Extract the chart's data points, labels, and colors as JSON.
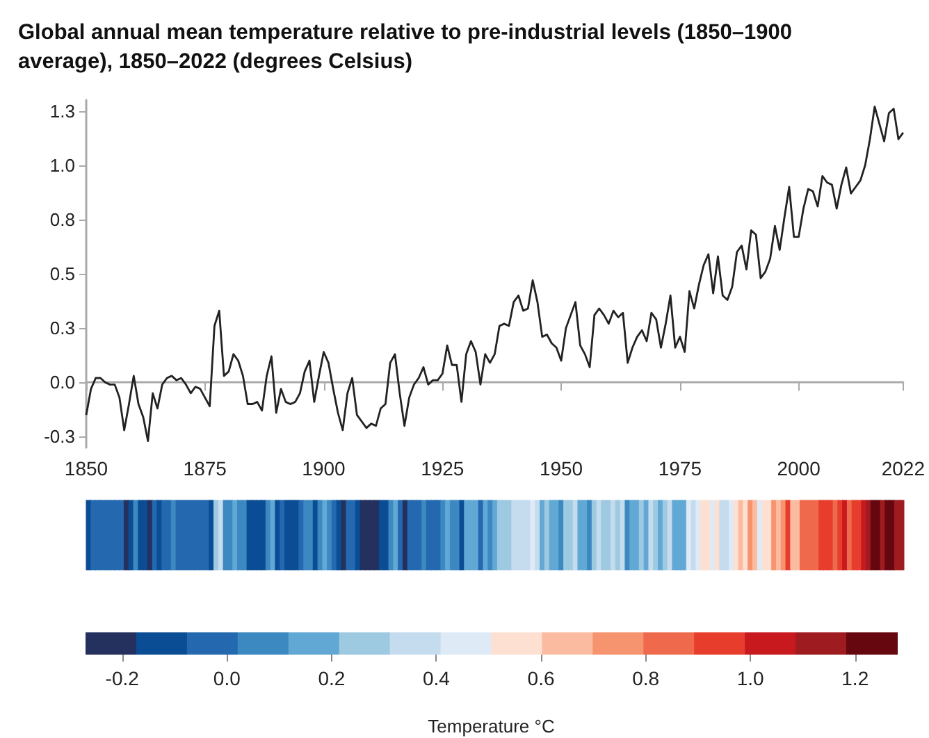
{
  "chart_data": [
    {
      "type": "line",
      "title": "Global annual mean temperature relative to pre-industrial levels (1850–1900 average), 1850–2022 (degrees Celsius)",
      "x": [
        1850,
        1851,
        1852,
        1853,
        1854,
        1855,
        1856,
        1857,
        1858,
        1859,
        1860,
        1861,
        1862,
        1863,
        1864,
        1865,
        1866,
        1867,
        1868,
        1869,
        1870,
        1871,
        1872,
        1873,
        1874,
        1875,
        1876,
        1877,
        1878,
        1879,
        1880,
        1881,
        1882,
        1883,
        1884,
        1885,
        1886,
        1887,
        1888,
        1889,
        1890,
        1891,
        1892,
        1893,
        1894,
        1895,
        1896,
        1897,
        1898,
        1899,
        1900,
        1901,
        1902,
        1903,
        1904,
        1905,
        1906,
        1907,
        1908,
        1909,
        1910,
        1911,
        1912,
        1913,
        1914,
        1915,
        1916,
        1917,
        1918,
        1919,
        1920,
        1921,
        1922,
        1923,
        1924,
        1925,
        1926,
        1927,
        1928,
        1929,
        1930,
        1931,
        1932,
        1933,
        1934,
        1935,
        1936,
        1937,
        1938,
        1939,
        1940,
        1941,
        1942,
        1943,
        1944,
        1945,
        1946,
        1947,
        1948,
        1949,
        1950,
        1951,
        1952,
        1953,
        1954,
        1955,
        1956,
        1957,
        1958,
        1959,
        1960,
        1961,
        1962,
        1963,
        1964,
        1965,
        1966,
        1967,
        1968,
        1969,
        1970,
        1971,
        1972,
        1973,
        1974,
        1975,
        1976,
        1977,
        1978,
        1979,
        1980,
        1981,
        1982,
        1983,
        1984,
        1985,
        1986,
        1987,
        1988,
        1989,
        1990,
        1991,
        1992,
        1993,
        1994,
        1995,
        1996,
        1997,
        1998,
        1999,
        2000,
        2001,
        2002,
        2003,
        2004,
        2005,
        2006,
        2007,
        2008,
        2009,
        2010,
        2011,
        2012,
        2013,
        2014,
        2015,
        2016,
        2017,
        2018,
        2019,
        2020,
        2021,
        2022
      ],
      "series": [
        {
          "color": "#222222",
          "values": [
            -0.15,
            -0.03,
            0.02,
            0.02,
            0,
            -0.01,
            -0.01,
            -0.07,
            -0.22,
            -0.1,
            0.03,
            -0.1,
            -0.16,
            -0.27,
            -0.05,
            -0.12,
            -0.01,
            0.02,
            0.03,
            0.01,
            0.02,
            -0.01,
            -0.05,
            -0.02,
            -0.03,
            -0.07,
            -0.11,
            0.26,
            0.33,
            0.03,
            0.05,
            0.13,
            0.1,
            0.03,
            -0.1,
            -0.1,
            -0.09,
            -0.13,
            0.03,
            0.12,
            -0.14,
            -0.03,
            -0.09,
            -0.1,
            -0.09,
            -0.05,
            0.05,
            0.1,
            -0.09,
            0.03,
            0.14,
            0.09,
            -0.03,
            -0.14,
            -0.22,
            -0.05,
            0.02,
            -0.15,
            -0.18,
            -0.21,
            -0.19,
            -0.2,
            -0.12,
            -0.1,
            0.09,
            0.13,
            -0.05,
            -0.2,
            -0.07,
            -0.01,
            0.02,
            0.07,
            -0.01,
            0.01,
            0.01,
            0.04,
            0.17,
            0.08,
            0.08,
            -0.09,
            0.13,
            0.19,
            0.14,
            -0.01,
            0.13,
            0.09,
            0.13,
            0.26,
            0.27,
            0.26,
            0.37,
            0.4,
            0.33,
            0.34,
            0.47,
            0.37,
            0.21,
            0.22,
            0.18,
            0.16,
            0.1,
            0.25,
            0.31,
            0.37,
            0.17,
            0.13,
            0.07,
            0.31,
            0.34,
            0.31,
            0.27,
            0.33,
            0.3,
            0.32,
            0.09,
            0.16,
            0.21,
            0.24,
            0.19,
            0.32,
            0.29,
            0.16,
            0.27,
            0.4,
            0.16,
            0.21,
            0.14,
            0.42,
            0.34,
            0.45,
            0.54,
            0.59,
            0.41,
            0.58,
            0.4,
            0.38,
            0.44,
            0.6,
            0.63,
            0.52,
            0.7,
            0.68,
            0.48,
            0.51,
            0.57,
            0.72,
            0.61,
            0.76,
            0.9,
            0.67,
            0.67,
            0.8,
            0.89,
            0.88,
            0.81,
            0.95,
            0.92,
            0.91,
            0.8,
            0.91,
            0.99,
            0.87,
            0.9,
            0.93,
            1.0,
            1.12,
            1.27,
            1.19,
            1.11,
            1.24,
            1.26,
            1.12,
            1.15
          ]
        }
      ],
      "xlim": [
        1850,
        2022
      ],
      "xticks": [
        1850,
        1875,
        1900,
        1925,
        1950,
        1975,
        2000,
        2022
      ],
      "ylim": [
        -0.3,
        1.3
      ],
      "yticks": [
        {
          "value": -0.25,
          "label": "-0.3"
        },
        {
          "value": 0,
          "label": "0.0"
        },
        {
          "value": 0.25,
          "label": "0.3"
        },
        {
          "value": 0.5,
          "label": "0.5"
        },
        {
          "value": 0.75,
          "label": "0.8"
        },
        {
          "value": 1,
          "label": "1.0"
        },
        {
          "value": 1.25,
          "label": "1.3"
        }
      ]
    },
    {
      "type": "heatmap",
      "clabel": "Temperature °C",
      "categories": [
        null,
        null,
        null,
        null,
        null,
        null,
        null,
        null,
        null,
        null,
        null,
        null,
        null,
        null,
        null,
        null,
        null,
        null,
        null,
        null,
        null,
        null,
        null,
        null,
        null,
        null,
        null,
        null,
        null,
        null,
        null,
        null,
        null,
        null,
        null,
        null,
        null,
        null,
        null,
        null,
        null,
        null,
        null,
        null,
        null,
        null,
        null,
        null,
        null,
        null,
        null,
        null,
        null,
        null,
        null,
        null,
        null,
        null,
        null,
        null,
        null,
        null,
        null,
        null,
        null,
        null,
        null,
        null,
        null,
        null,
        null,
        null,
        null,
        null,
        null,
        null,
        null,
        null,
        null,
        null,
        null,
        null,
        null,
        null,
        null,
        null,
        null,
        null,
        null,
        null,
        null,
        null,
        null,
        null,
        null,
        null,
        null,
        null,
        null,
        null,
        null,
        null,
        null,
        null,
        null,
        null,
        null,
        null,
        null,
        null,
        null,
        null,
        null,
        null,
        null,
        null,
        null,
        null,
        null,
        null,
        null,
        null,
        null,
        null,
        null,
        null,
        null,
        null,
        null,
        null,
        null,
        null,
        null,
        null,
        null,
        null,
        null,
        null,
        null,
        null,
        null,
        null,
        null,
        null,
        null,
        null,
        null,
        null,
        null,
        null,
        null,
        null,
        null,
        null,
        null,
        null,
        null,
        null,
        null,
        null,
        null,
        null,
        null,
        null,
        null,
        null,
        null,
        null,
        null,
        null,
        null,
        null,
        null
      ],
      "y_categories": [
        null
      ],
      "cells": [
        [
          -0.15,
          -0.03,
          0.02,
          0.02,
          0,
          -0.01,
          -0.01,
          -0.07,
          -0.22,
          -0.1,
          0.03,
          -0.1,
          -0.16,
          -0.27,
          -0.05,
          -0.12,
          -0.01,
          0.02,
          0.03,
          0.01,
          0.02,
          -0.01,
          -0.05,
          -0.02,
          -0.03,
          -0.07,
          -0.11,
          0.26,
          0.33,
          0.03,
          0.05,
          0.13,
          0.1,
          0.03,
          -0.1,
          -0.1,
          -0.09,
          -0.13,
          0.03,
          0.12,
          -0.14,
          -0.03,
          -0.09,
          -0.1,
          -0.09,
          -0.05,
          0.05,
          0.1,
          -0.09,
          0.03,
          0.14,
          0.09,
          -0.03,
          -0.14,
          -0.22,
          -0.05,
          0.02,
          -0.15,
          -0.18,
          -0.21,
          -0.19,
          -0.2,
          -0.12,
          -0.1,
          0.09,
          0.13,
          -0.05,
          -0.2,
          -0.07,
          -0.01,
          0.02,
          0.07,
          -0.01,
          0.01,
          0.01,
          0.04,
          0.17,
          0.08,
          0.08,
          -0.09,
          0.13,
          0.19,
          0.14,
          -0.01,
          0.13,
          0.09,
          0.13,
          0.26,
          0.27,
          0.26,
          0.37,
          0.4,
          0.33,
          0.34,
          0.47,
          0.37,
          0.21,
          0.22,
          0.18,
          0.16,
          0.1,
          0.25,
          0.31,
          0.37,
          0.17,
          0.13,
          0.07,
          0.31,
          0.34,
          0.31,
          0.27,
          0.33,
          0.3,
          0.32,
          0.09,
          0.16,
          0.21,
          0.24,
          0.19,
          0.32,
          0.29,
          0.16,
          0.27,
          0.4,
          0.16,
          0.21,
          0.14,
          0.42,
          0.34,
          0.45,
          0.54,
          0.59,
          0.41,
          0.58,
          0.4,
          0.38,
          0.44,
          0.6,
          0.63,
          0.52,
          0.7,
          0.68,
          0.48,
          0.51,
          0.57,
          0.72,
          0.61,
          0.76,
          0.9,
          0.67,
          0.67,
          0.8,
          0.89,
          0.88,
          0.81,
          0.95,
          0.92,
          0.91,
          0.8,
          0.91,
          0.99,
          0.87,
          0.9,
          0.93,
          1.0,
          1.12,
          1.27,
          1.19,
          1.11,
          1.24,
          1.26,
          1.12,
          1.15
        ]
      ],
      "clim": [
        -0.27,
        1.28
      ],
      "cticks": [
        -0.2,
        {
          "value": 0,
          "label": "0.0"
        },
        0.2,
        0.4,
        0.6,
        0.8,
        {
          "value": 1,
          "label": "1.0"
        },
        1.2
      ]
    }
  ]
}
